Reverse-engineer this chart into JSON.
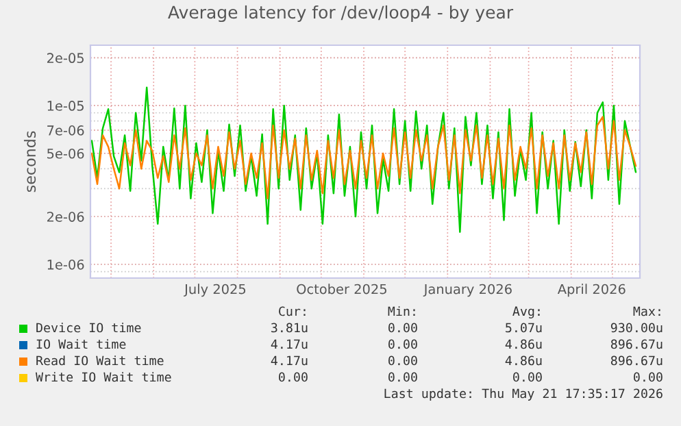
{
  "chart_data": {
    "type": "line",
    "title": "Average latency for /dev/loop4 - by year",
    "ylabel": "seconds",
    "log": "y",
    "grid": true,
    "legend": "bottom",
    "ylim": [
      8.2e-07,
      2.4e-05
    ],
    "yticks": [
      {
        "value": 1e-06,
        "label": "1e-06"
      },
      {
        "value": 2e-06,
        "label": "2e-06"
      },
      {
        "value": 5e-06,
        "label": "5e-06"
      },
      {
        "value": 7e-06,
        "label": "7e-06"
      },
      {
        "value": 1e-05,
        "label": "1e-05"
      },
      {
        "value": 2e-05,
        "label": "2e-05"
      }
    ],
    "xlim": [
      "2025-04-16",
      "2026-05-21"
    ],
    "xticks": [
      {
        "value": "2025-07-16",
        "label": "July 2025"
      },
      {
        "value": "2025-10-16",
        "label": "October 2025"
      },
      {
        "value": "2026-01-16",
        "label": "January 2026"
      },
      {
        "value": "2026-04-16",
        "label": "April 2026"
      }
    ],
    "x": [
      "2025-04-17",
      "2025-04-21",
      "2025-04-25",
      "2025-04-29",
      "2025-05-03",
      "2025-05-07",
      "2025-05-11",
      "2025-05-15",
      "2025-05-19",
      "2025-05-23",
      "2025-05-27",
      "2025-05-31",
      "2025-06-04",
      "2025-06-08",
      "2025-06-12",
      "2025-06-16",
      "2025-06-20",
      "2025-06-24",
      "2025-06-28",
      "2025-07-02",
      "2025-07-06",
      "2025-07-10",
      "2025-07-14",
      "2025-07-18",
      "2025-07-22",
      "2025-07-26",
      "2025-07-30",
      "2025-08-03",
      "2025-08-07",
      "2025-08-11",
      "2025-08-15",
      "2025-08-19",
      "2025-08-23",
      "2025-08-27",
      "2025-08-31",
      "2025-09-04",
      "2025-09-08",
      "2025-09-12",
      "2025-09-16",
      "2025-09-20",
      "2025-09-24",
      "2025-09-28",
      "2025-10-02",
      "2025-10-06",
      "2025-10-10",
      "2025-10-14",
      "2025-10-18",
      "2025-10-22",
      "2025-10-26",
      "2025-10-30",
      "2025-11-03",
      "2025-11-07",
      "2025-11-11",
      "2025-11-15",
      "2025-11-19",
      "2025-11-23",
      "2025-11-27",
      "2025-12-01",
      "2025-12-05",
      "2025-12-09",
      "2025-12-13",
      "2025-12-17",
      "2025-12-21",
      "2025-12-25",
      "2025-12-29",
      "2026-01-02",
      "2026-01-06",
      "2026-01-10",
      "2026-01-14",
      "2026-01-18",
      "2026-01-22",
      "2026-01-26",
      "2026-01-30",
      "2026-02-03",
      "2026-02-07",
      "2026-02-11",
      "2026-02-15",
      "2026-02-19",
      "2026-02-23",
      "2026-02-27",
      "2026-03-03",
      "2026-03-07",
      "2026-03-11",
      "2026-03-15",
      "2026-03-19",
      "2026-03-23",
      "2026-03-27",
      "2026-03-31",
      "2026-04-04",
      "2026-04-08",
      "2026-04-12",
      "2026-04-16",
      "2026-04-20",
      "2026-04-24",
      "2026-04-28",
      "2026-05-02",
      "2026-05-06",
      "2026-05-10",
      "2026-05-14",
      "2026-05-18"
    ],
    "series": [
      {
        "name": "Device IO time",
        "color": "#00cc00",
        "values": [
          6e-06,
          3.5e-06,
          7.2e-06,
          9.5e-06,
          4.8e-06,
          3.8e-06,
          6.5e-06,
          2.9e-06,
          9e-06,
          4.5e-06,
          1.3e-05,
          4.2e-06,
          1.8e-06,
          5.5e-06,
          3.4e-06,
          9.6e-06,
          3e-06,
          1e-05,
          2.6e-06,
          5.8e-06,
          3.3e-06,
          7e-06,
          2.1e-06,
          5.2e-06,
          2.9e-06,
          7.6e-06,
          3.6e-06,
          7.5e-06,
          2.9e-06,
          4.8e-06,
          2.7e-06,
          6.6e-06,
          1.8e-06,
          9.5e-06,
          3e-06,
          1e-05,
          3.4e-06,
          6.5e-06,
          2.2e-06,
          7.2e-06,
          3e-06,
          5e-06,
          1.8e-06,
          6.5e-06,
          2.8e-06,
          8.8e-06,
          2.7e-06,
          5.5e-06,
          2e-06,
          6.8e-06,
          3e-06,
          7.5e-06,
          2.1e-06,
          4.6e-06,
          2.9e-06,
          9.5e-06,
          3.2e-06,
          8e-06,
          2.9e-06,
          9.2e-06,
          4e-06,
          7.5e-06,
          2.4e-06,
          5.5e-06,
          9e-06,
          3e-06,
          7.2e-06,
          1.6e-06,
          8.5e-06,
          4.2e-06,
          9e-06,
          3.2e-06,
          7.5e-06,
          2.6e-06,
          6.8e-06,
          1.9e-06,
          9.5e-06,
          2.7e-06,
          5.3e-06,
          3.4e-06,
          9e-06,
          2.1e-06,
          6.8e-06,
          3e-06,
          6e-06,
          1.8e-06,
          7e-06,
          2.9e-06,
          5.9e-06,
          3.1e-06,
          7e-06,
          2.6e-06,
          9e-06,
          1.05e-05,
          3.4e-06,
          1e-05,
          2.4e-06,
          8e-06,
          5.5e-06,
          3.81e-06
        ]
      },
      {
        "name": "IO Wait time",
        "color": "#0066b3",
        "values": [
          null,
          null,
          null,
          null,
          null,
          null,
          null,
          null,
          null,
          null,
          null,
          null,
          null,
          null,
          null,
          null,
          null,
          null,
          null,
          null,
          null,
          null,
          null,
          null,
          null,
          null,
          null,
          null,
          null,
          null,
          null,
          null,
          null,
          null,
          null,
          null,
          null,
          null,
          null,
          null,
          null,
          null,
          null,
          null,
          null,
          null,
          null,
          null,
          null,
          null,
          null,
          null,
          null,
          null,
          null,
          null,
          null,
          null,
          null,
          null,
          null,
          null,
          null,
          null,
          null,
          null,
          null,
          null,
          null,
          null,
          null,
          null,
          null,
          null,
          null,
          null,
          null,
          null,
          null,
          null,
          null,
          null,
          null,
          null,
          null,
          null,
          null,
          null,
          null,
          null,
          null,
          null,
          null,
          null,
          null,
          null,
          null,
          null,
          null,
          null
        ]
      },
      {
        "name": "Read IO Wait time",
        "color": "#ff8000",
        "values": [
          5e-06,
          3.2e-06,
          6.5e-06,
          5.5e-06,
          4e-06,
          3e-06,
          5.8e-06,
          4.2e-06,
          7e-06,
          4e-06,
          6e-06,
          5.2e-06,
          3.5e-06,
          4.8e-06,
          3.3e-06,
          6.5e-06,
          4e-06,
          7.2e-06,
          3.4e-06,
          5e-06,
          4.2e-06,
          6.5e-06,
          3e-06,
          5.5e-06,
          3.6e-06,
          6.8e-06,
          4e-06,
          6e-06,
          3.2e-06,
          5e-06,
          3.5e-06,
          5.8e-06,
          2.6e-06,
          7.5e-06,
          3.5e-06,
          7e-06,
          4e-06,
          6.2e-06,
          3e-06,
          6.5e-06,
          3.4e-06,
          5.2e-06,
          2.8e-06,
          6e-06,
          3.5e-06,
          7e-06,
          3.2e-06,
          5.2e-06,
          3e-06,
          6e-06,
          3.5e-06,
          6.5e-06,
          3e-06,
          5e-06,
          3.6e-06,
          7.2e-06,
          3.5e-06,
          6.8e-06,
          3.5e-06,
          7e-06,
          4.5e-06,
          6.5e-06,
          3e-06,
          5.5e-06,
          7.5e-06,
          3.4e-06,
          6.5e-06,
          2.8e-06,
          7e-06,
          4.5e-06,
          7.5e-06,
          3.5e-06,
          6.5e-06,
          3.2e-06,
          6.2e-06,
          3e-06,
          7.5e-06,
          3.4e-06,
          5.5e-06,
          4e-06,
          7.2e-06,
          3e-06,
          6.5e-06,
          3.6e-06,
          5.8e-06,
          3e-06,
          6.5e-06,
          3.4e-06,
          5.8e-06,
          3.8e-06,
          6.8e-06,
          3.2e-06,
          7.5e-06,
          8.5e-06,
          4e-06,
          8e-06,
          3.4e-06,
          7e-06,
          5.5e-06,
          4.17e-06
        ]
      },
      {
        "name": "Write IO Wait time",
        "color": "#ffcc00",
        "values": [
          null,
          null,
          null,
          null,
          null,
          null,
          null,
          null,
          null,
          null,
          null,
          null,
          null,
          null,
          null,
          null,
          null,
          null,
          null,
          null,
          null,
          null,
          null,
          null,
          null,
          null,
          null,
          null,
          null,
          null,
          null,
          null,
          null,
          null,
          null,
          null,
          null,
          null,
          null,
          null,
          null,
          null,
          null,
          null,
          null,
          null,
          null,
          null,
          null,
          null,
          null,
          null,
          null,
          null,
          null,
          null,
          null,
          null,
          null,
          null,
          null,
          null,
          null,
          null,
          null,
          null,
          null,
          null,
          null,
          null,
          null,
          null,
          null,
          null,
          null,
          null,
          null,
          null,
          null,
          null,
          null,
          null,
          null,
          null,
          null,
          null,
          null,
          null,
          null,
          null,
          null,
          null,
          null,
          null,
          null,
          null,
          null,
          null,
          null,
          null
        ]
      }
    ],
    "annotations": [
      "Cur:",
      "Min:",
      "Avg:",
      "Max:",
      "3.81u",
      "0.00",
      "5.07u",
      "930.00u",
      "4.17u",
      "0.00",
      "4.86u",
      "896.67u",
      "4.17u",
      "0.00",
      "4.86u",
      "896.67u",
      "0.00",
      "0.00",
      "0.00",
      "0.00",
      "Last update: Thu May 21 17:35:17 2026"
    ]
  }
}
